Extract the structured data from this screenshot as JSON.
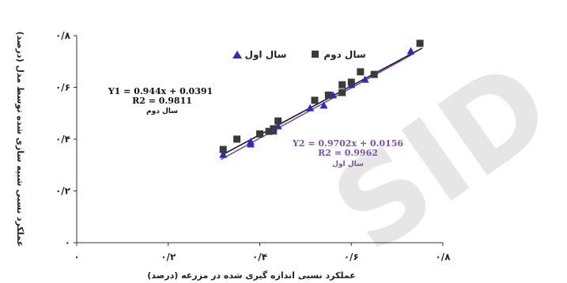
{
  "watermark": "SID",
  "chart_data": {
    "type": "scatter",
    "xlabel": "عملکرد نسبی اندازه گیری شده در مزرعه (درصد)",
    "ylabel": "عملکرد نسبی شبیه سازی شده توسط مدل (درصد)",
    "xlim": [
      0,
      0.8
    ],
    "ylim": [
      0,
      0.8
    ],
    "x_ticks": [
      0,
      0.2,
      0.4,
      0.6,
      0.8
    ],
    "y_ticks": [
      0,
      0.2,
      0.4,
      0.6,
      0.8
    ],
    "x_tick_labels": [
      "۰",
      "۰/۲",
      "۰/۴",
      "۰/۶",
      "۰/۸"
    ],
    "y_tick_labels": [
      "۰",
      "۰/۲",
      "۰/۴",
      "۰/۶",
      "۰/۸"
    ],
    "grid": false,
    "legend_position": "top",
    "colors": {
      "series1": "#2b2bbf",
      "series2": "#3a3a3a",
      "line1": "#7b4fb0",
      "line2": "#1a1a1a"
    },
    "series": [
      {
        "name": "سال اول",
        "marker": "triangle",
        "points": [
          {
            "x": 0.32,
            "y": 0.34
          },
          {
            "x": 0.38,
            "y": 0.38
          },
          {
            "x": 0.38,
            "y": 0.39
          },
          {
            "x": 0.43,
            "y": 0.43
          },
          {
            "x": 0.44,
            "y": 0.45
          },
          {
            "x": 0.51,
            "y": 0.52
          },
          {
            "x": 0.54,
            "y": 0.53
          },
          {
            "x": 0.56,
            "y": 0.57
          },
          {
            "x": 0.6,
            "y": 0.61
          },
          {
            "x": 0.63,
            "y": 0.63
          },
          {
            "x": 0.73,
            "y": 0.74
          }
        ],
        "fit": {
          "slope": 0.9702,
          "intercept": 0.0156,
          "equation": "Y2 = 0.9702x + 0.0156",
          "r2": "R2 = 0.9962",
          "label": "سال اول"
        }
      },
      {
        "name": "سال دوم",
        "marker": "square",
        "points": [
          {
            "x": 0.32,
            "y": 0.36
          },
          {
            "x": 0.35,
            "y": 0.4
          },
          {
            "x": 0.4,
            "y": 0.42
          },
          {
            "x": 0.42,
            "y": 0.43
          },
          {
            "x": 0.43,
            "y": 0.44
          },
          {
            "x": 0.44,
            "y": 0.47
          },
          {
            "x": 0.52,
            "y": 0.55
          },
          {
            "x": 0.55,
            "y": 0.57
          },
          {
            "x": 0.58,
            "y": 0.58
          },
          {
            "x": 0.58,
            "y": 0.61
          },
          {
            "x": 0.6,
            "y": 0.62
          },
          {
            "x": 0.62,
            "y": 0.66
          },
          {
            "x": 0.65,
            "y": 0.65
          },
          {
            "x": 0.75,
            "y": 0.77
          }
        ],
        "fit": {
          "slope": 0.944,
          "intercept": 0.0391,
          "equation": "Y1 = 0.944x + 0.0391",
          "r2": "R2 = 0.9811",
          "label": "سال دوم"
        }
      }
    ]
  }
}
